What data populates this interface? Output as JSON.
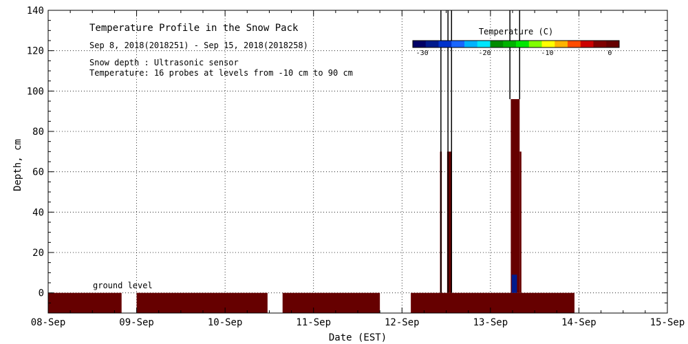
{
  "chart_data": {
    "type": "heatmap",
    "title": "Temperature Profile in the Snow Pack",
    "date_range": "Sep  8, 2018(2018251) - Sep 15, 2018(2018258)",
    "info_lines": [
      "Snow depth : Ultrasonic sensor",
      "Temperature: 16 probes at levels from -10 cm to 90 cm"
    ],
    "xlabel": "Date (EST)",
    "ylabel": "Depth, cm",
    "x_ticks": [
      "08-Sep",
      "09-Sep",
      "10-Sep",
      "11-Sep",
      "12-Sep",
      "13-Sep",
      "14-Sep",
      "15-Sep"
    ],
    "xlim": [
      0,
      7
    ],
    "ylim": [
      -10,
      140
    ],
    "y_ticks": [
      0,
      20,
      40,
      60,
      80,
      100,
      120,
      140
    ],
    "grid": true,
    "ground_level_label": "ground level",
    "colorbar": {
      "title": "Temperature (C)",
      "range": [
        -31.5,
        1.5
      ],
      "tick_values": [
        -30,
        -20,
        -10,
        0
      ],
      "tick_labels": [
        "-30",
        "-20",
        "-10",
        "0"
      ],
      "colors": [
        "#000066",
        "#001a8c",
        "#0033cc",
        "#1a66ff",
        "#00b3ff",
        "#00e6ff",
        "#008c00",
        "#00b300",
        "#00e600",
        "#80ff00",
        "#ffff00",
        "#ffb300",
        "#ff4d00",
        "#cc0000",
        "#800000",
        "#660000"
      ]
    },
    "ground_color": "#660000",
    "ground_segments": [
      {
        "start": 0.0,
        "end": 0.83
      },
      {
        "start": 1.0,
        "end": 2.48
      },
      {
        "start": 2.65,
        "end": 3.75
      },
      {
        "start": 4.1,
        "end": 5.95
      }
    ],
    "temperature_columns": [
      {
        "x": 4.43,
        "width": 0.02,
        "top": 70,
        "bottom": 0,
        "color": "#660000"
      },
      {
        "x": 4.51,
        "width": 0.05,
        "top": 70,
        "bottom": 0,
        "color": "#660000"
      },
      {
        "x": 5.23,
        "width": 0.1,
        "top": 96,
        "bottom": 0,
        "color": "#660000"
      },
      {
        "x": 5.33,
        "width": 0.02,
        "top": 70,
        "bottom": 0,
        "color": "#660000"
      },
      {
        "x": 5.24,
        "width": 0.06,
        "top": 9,
        "bottom": 0,
        "color": "#001a8c"
      }
    ],
    "snow_depth_spikes": [
      {
        "x": 4.44,
        "top": 140,
        "bottom": 0
      },
      {
        "x": 4.52,
        "top": 140,
        "bottom": 0
      },
      {
        "x": 4.56,
        "top": 140,
        "bottom": 0
      },
      {
        "x": 5.22,
        "top": 140,
        "bottom": 96
      },
      {
        "x": 5.33,
        "top": 140,
        "bottom": 96
      }
    ]
  }
}
